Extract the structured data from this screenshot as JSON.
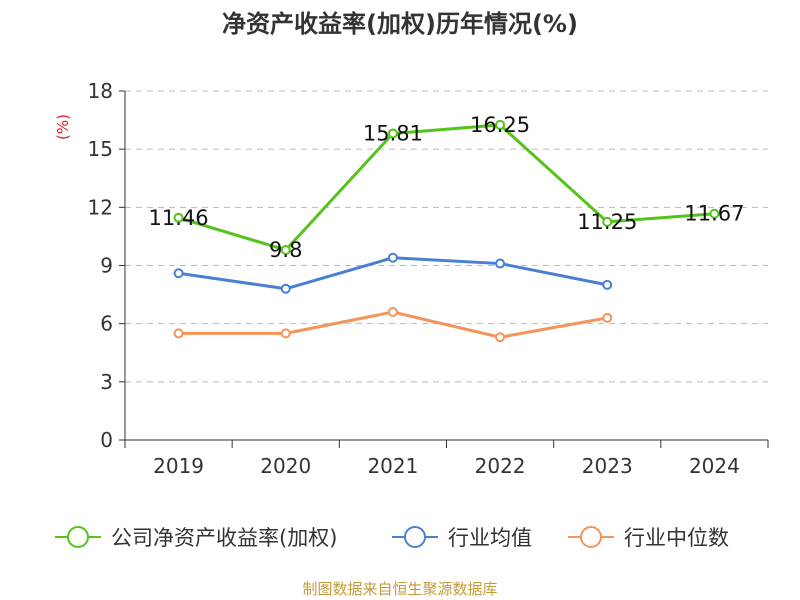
{
  "chart_data": {
    "type": "line",
    "title": "净资产收益率(加权)历年情况(%)",
    "ylabel": "(%)",
    "xlabel": "",
    "categories": [
      "2019",
      "2020",
      "2021",
      "2022",
      "2023",
      "2024"
    ],
    "ylim": [
      0,
      18
    ],
    "yticks": [
      0,
      3,
      6,
      9,
      12,
      15,
      18
    ],
    "grid": true,
    "legend_position": "bottom",
    "series": [
      {
        "name": "公司净资产收益率(加权)",
        "color": "#52c41a",
        "values": [
          11.46,
          9.8,
          15.81,
          16.25,
          11.25,
          11.67
        ],
        "labels": [
          "11.46",
          "9.8",
          "15.81",
          "16.25",
          "11.25",
          "11.67"
        ]
      },
      {
        "name": "行业均值",
        "color": "#4a7fd4",
        "values": [
          8.6,
          7.8,
          9.4,
          9.1,
          8.0,
          null
        ]
      },
      {
        "name": "行业中位数",
        "color": "#f4935a",
        "values": [
          5.5,
          5.5,
          6.6,
          5.3,
          6.3,
          null
        ]
      }
    ]
  },
  "source": "制图数据来自恒生聚源数据库"
}
